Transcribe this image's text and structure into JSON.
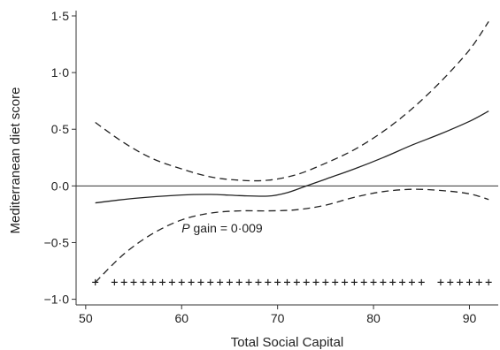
{
  "chart_data": {
    "type": "line",
    "xlabel": "Total Social Capital",
    "ylabel": "Mediterranean diet score",
    "xlim": [
      49,
      93
    ],
    "ylim": [
      -1.05,
      1.5
    ],
    "x_ticks": [
      50,
      60,
      70,
      80,
      90
    ],
    "y_ticks": [
      -1.0,
      -0.5,
      0.0,
      0.5,
      1.0,
      1.5
    ],
    "x_tick_labels": [
      "50",
      "60",
      "70",
      "80",
      "90"
    ],
    "y_tick_labels": [
      "−1·0",
      "−0·5",
      "0·0",
      "0·5",
      "1·0",
      "1·5"
    ],
    "reference_line_y": 0.0,
    "grid": false,
    "annotation": {
      "italic_part": "P",
      "rest": " gain = 0·009",
      "x": 60,
      "y": -0.41
    },
    "series": [
      {
        "style": "solid",
        "x": [
          51,
          55,
          60,
          63,
          66,
          69,
          71,
          73,
          75,
          78,
          81,
          84,
          87,
          90,
          92
        ],
        "y": [
          -0.15,
          -0.11,
          -0.08,
          -0.075,
          -0.085,
          -0.09,
          -0.06,
          0.0,
          0.06,
          0.15,
          0.25,
          0.36,
          0.46,
          0.57,
          0.66
        ]
      },
      {
        "style": "dashed",
        "x": [
          51,
          54,
          57,
          60,
          63,
          66,
          69,
          72,
          75,
          78,
          81,
          84,
          87,
          90,
          92
        ],
        "y": [
          0.56,
          0.38,
          0.24,
          0.15,
          0.08,
          0.05,
          0.05,
          0.1,
          0.2,
          0.32,
          0.48,
          0.68,
          0.92,
          1.2,
          1.45
        ]
      },
      {
        "style": "dashed",
        "x": [
          51,
          54,
          57,
          60,
          63,
          66,
          69,
          72,
          75,
          78,
          81,
          84,
          87,
          90,
          92
        ],
        "y": [
          -0.85,
          -0.6,
          -0.42,
          -0.3,
          -0.24,
          -0.22,
          -0.22,
          -0.21,
          -0.17,
          -0.1,
          -0.05,
          -0.03,
          -0.04,
          -0.07,
          -0.12
        ]
      }
    ],
    "rug": {
      "symbol": "+",
      "y": -0.85,
      "x": [
        51,
        53,
        54,
        55,
        56,
        57,
        58,
        59,
        60,
        61,
        62,
        63,
        64,
        65,
        66,
        67,
        68,
        69,
        70,
        71,
        72,
        73,
        74,
        75,
        76,
        77,
        78,
        79,
        80,
        81,
        82,
        83,
        84,
        85,
        87,
        88,
        89,
        90,
        91,
        92
      ]
    }
  }
}
